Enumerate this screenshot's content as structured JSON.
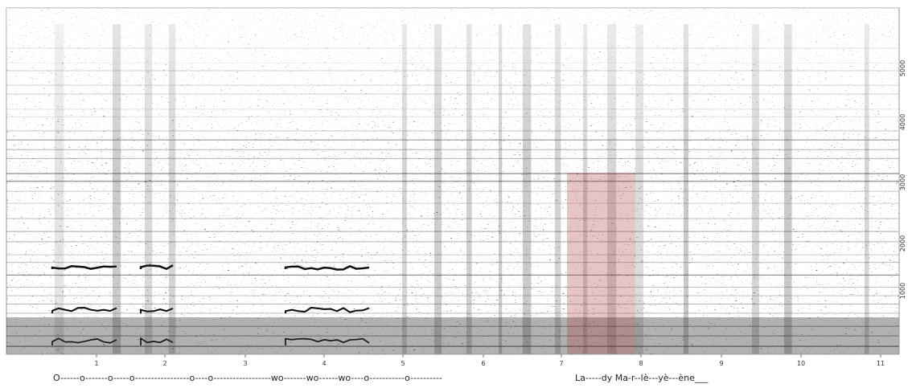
{
  "x_axis": {
    "labels": [
      "1",
      "2",
      "3",
      "4",
      "5",
      "6",
      "7",
      "8",
      "9",
      "10",
      "11"
    ]
  },
  "y_axis": {
    "labels": [
      "1000",
      "2000",
      "3000",
      "4000",
      "5000"
    ]
  },
  "lyrics": [
    "O------o-------o-----o-----------------o----o------------------wo-------wo------wo----o-----------o----------",
    "La-----dy  Ma-r--lè---yè---ène___"
  ]
}
